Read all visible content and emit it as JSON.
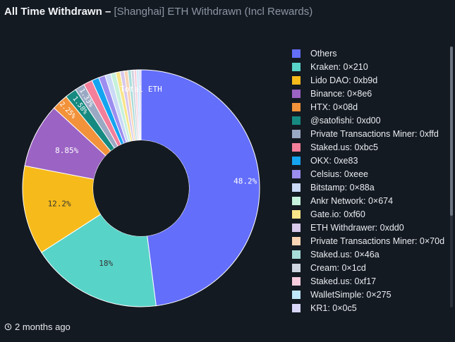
{
  "header": {
    "title": "All Time Withdrawn",
    "separator": "–",
    "subtitle": "[Shanghai] ETH Withdrawn (Incl Rewards)"
  },
  "footer": {
    "time_ago": "2 months ago",
    "icon": "history-icon"
  },
  "chart_data": {
    "type": "pie",
    "title": "Total ETH",
    "donut": true,
    "legend_position": "right",
    "slices": [
      {
        "label": "Others",
        "value": 48.2,
        "color": "#636efa",
        "data_label": "48.2%"
      },
      {
        "label": "Kraken: 0×210",
        "value": 18.0,
        "color": "#58d3c8",
        "data_label": "18%"
      },
      {
        "label": "Lido DAO: 0xb9d",
        "value": 12.2,
        "color": "#f6bb1a",
        "data_label": "12.2%"
      },
      {
        "label": "Binance: 0×8e6",
        "value": 8.85,
        "color": "#9b63c4",
        "data_label": "8.85%"
      },
      {
        "label": "HTX: 0×08d",
        "value": 2.25,
        "color": "#f2923a",
        "data_label": "2.25%"
      },
      {
        "label": "@satofishi: 0xd00",
        "value": 1.58,
        "color": "#168a81",
        "data_label": "1.58%"
      },
      {
        "label": "Private Transactions Miner: 0xffd",
        "value": 1.33,
        "color": "#9aa9c3",
        "data_label": "1.33%"
      },
      {
        "label": "Staked.us: 0xbc5",
        "value": 1.2,
        "color": "#f47f9a",
        "data_label": ""
      },
      {
        "label": "OKX: 0xe83",
        "value": 1.0,
        "color": "#15a4f0",
        "data_label": ""
      },
      {
        "label": "Celsius: 0xeee",
        "value": 0.9,
        "color": "#9c8df0",
        "data_label": ""
      },
      {
        "label": "Bitstamp: 0×88a",
        "value": 0.8,
        "color": "#c9d9f6",
        "data_label": ""
      },
      {
        "label": "Ankr Network: 0×674",
        "value": 0.7,
        "color": "#c6f1dc",
        "data_label": ""
      },
      {
        "label": "Gate.io: 0xf60",
        "value": 0.6,
        "color": "#f8e58a",
        "data_label": ""
      },
      {
        "label": "ETH Withdrawer: 0xdd0",
        "value": 0.55,
        "color": "#d7c8ec",
        "data_label": ""
      },
      {
        "label": "Private Transactions Miner: 0×70d",
        "value": 0.5,
        "color": "#f8d4b4",
        "data_label": ""
      },
      {
        "label": "Staked.us: 0×46a",
        "value": 0.45,
        "color": "#a6ddd9",
        "data_label": ""
      },
      {
        "label": "Cream: 0×1cd",
        "value": 0.4,
        "color": "#cfd5e0",
        "data_label": ""
      },
      {
        "label": "Staked.us: 0xf17",
        "value": 0.35,
        "color": "#f7cddd",
        "data_label": ""
      },
      {
        "label": "WalletSimple: 0×275",
        "value": 0.3,
        "color": "#bfe6fa",
        "data_label": ""
      },
      {
        "label": "KR1: 0×0c5",
        "value": 0.3,
        "color": "#d8d6f8",
        "data_label": ""
      }
    ]
  }
}
